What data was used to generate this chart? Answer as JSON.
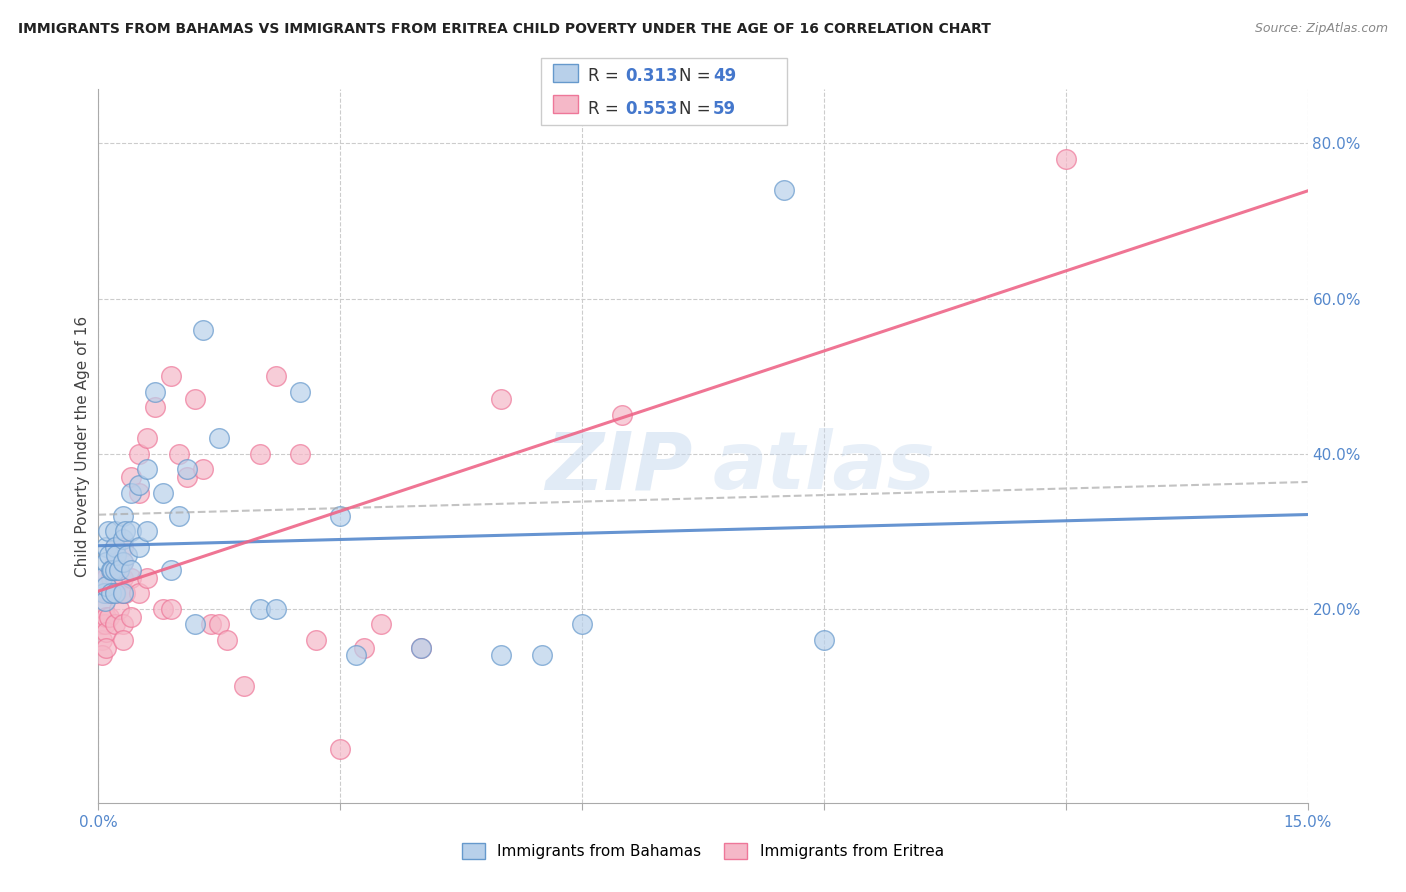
{
  "title": "IMMIGRANTS FROM BAHAMAS VS IMMIGRANTS FROM ERITREA CHILD POVERTY UNDER THE AGE OF 16 CORRELATION CHART",
  "source": "Source: ZipAtlas.com",
  "ylabel": "Child Poverty Under the Age of 16",
  "x_min": 0.0,
  "x_max": 0.15,
  "y_min": -0.05,
  "y_max": 0.87,
  "x_ticks": [
    0.0,
    0.03,
    0.06,
    0.09,
    0.12,
    0.15
  ],
  "x_tick_labels": [
    "0.0%",
    "",
    "",
    "",
    "",
    "15.0%"
  ],
  "y_tick_labels_right": [
    "20.0%",
    "40.0%",
    "60.0%",
    "80.0%"
  ],
  "y_tick_vals_right": [
    0.2,
    0.4,
    0.6,
    0.8
  ],
  "bahamas_color": "#b8d0ea",
  "eritrea_color": "#f5b8c8",
  "bahamas_edge_color": "#6699cc",
  "eritrea_edge_color": "#ee7799",
  "bahamas_line_color": "#5588cc",
  "eritrea_line_color": "#ee6688",
  "gray_dash_color": "#aaaaaa",
  "legend_label1": "Immigrants from Bahamas",
  "legend_label2": "Immigrants from Eritrea",
  "legend_r1_val": "0.313",
  "legend_n1_val": "49",
  "legend_r2_val": "0.553",
  "legend_n2_val": "59",
  "bahamas_x": [
    0.0005,
    0.0007,
    0.0008,
    0.001,
    0.001,
    0.001,
    0.0012,
    0.0013,
    0.0015,
    0.0015,
    0.0017,
    0.002,
    0.002,
    0.002,
    0.002,
    0.0022,
    0.0025,
    0.003,
    0.003,
    0.003,
    0.003,
    0.0033,
    0.0035,
    0.004,
    0.004,
    0.004,
    0.005,
    0.005,
    0.006,
    0.006,
    0.007,
    0.008,
    0.009,
    0.01,
    0.011,
    0.012,
    0.013,
    0.015,
    0.02,
    0.022,
    0.025,
    0.03,
    0.032,
    0.04,
    0.05,
    0.055,
    0.06,
    0.085,
    0.09
  ],
  "bahamas_y": [
    0.24,
    0.22,
    0.21,
    0.28,
    0.26,
    0.23,
    0.3,
    0.27,
    0.25,
    0.22,
    0.25,
    0.3,
    0.28,
    0.25,
    0.22,
    0.27,
    0.25,
    0.32,
    0.29,
    0.26,
    0.22,
    0.3,
    0.27,
    0.35,
    0.3,
    0.25,
    0.36,
    0.28,
    0.38,
    0.3,
    0.48,
    0.35,
    0.25,
    0.32,
    0.38,
    0.18,
    0.56,
    0.42,
    0.2,
    0.2,
    0.48,
    0.32,
    0.14,
    0.15,
    0.14,
    0.14,
    0.18,
    0.74,
    0.16
  ],
  "eritrea_x": [
    0.0003,
    0.0005,
    0.0005,
    0.0007,
    0.0008,
    0.001,
    0.001,
    0.001,
    0.001,
    0.001,
    0.0012,
    0.0013,
    0.0015,
    0.0017,
    0.002,
    0.002,
    0.002,
    0.002,
    0.002,
    0.0022,
    0.0025,
    0.003,
    0.003,
    0.003,
    0.003,
    0.003,
    0.003,
    0.0033,
    0.004,
    0.004,
    0.004,
    0.005,
    0.005,
    0.005,
    0.006,
    0.006,
    0.007,
    0.008,
    0.009,
    0.009,
    0.01,
    0.011,
    0.012,
    0.013,
    0.014,
    0.015,
    0.016,
    0.018,
    0.02,
    0.022,
    0.025,
    0.027,
    0.03,
    0.033,
    0.035,
    0.04,
    0.05,
    0.065,
    0.12
  ],
  "eritrea_y": [
    0.18,
    0.16,
    0.14,
    0.2,
    0.18,
    0.24,
    0.22,
    0.19,
    0.17,
    0.15,
    0.22,
    0.19,
    0.24,
    0.22,
    0.28,
    0.26,
    0.24,
    0.22,
    0.18,
    0.22,
    0.2,
    0.28,
    0.26,
    0.24,
    0.22,
    0.18,
    0.16,
    0.22,
    0.37,
    0.24,
    0.19,
    0.4,
    0.35,
    0.22,
    0.42,
    0.24,
    0.46,
    0.2,
    0.5,
    0.2,
    0.4,
    0.37,
    0.47,
    0.38,
    0.18,
    0.18,
    0.16,
    0.1,
    0.4,
    0.5,
    0.4,
    0.16,
    0.02,
    0.15,
    0.18,
    0.15,
    0.47,
    0.45,
    0.78
  ]
}
